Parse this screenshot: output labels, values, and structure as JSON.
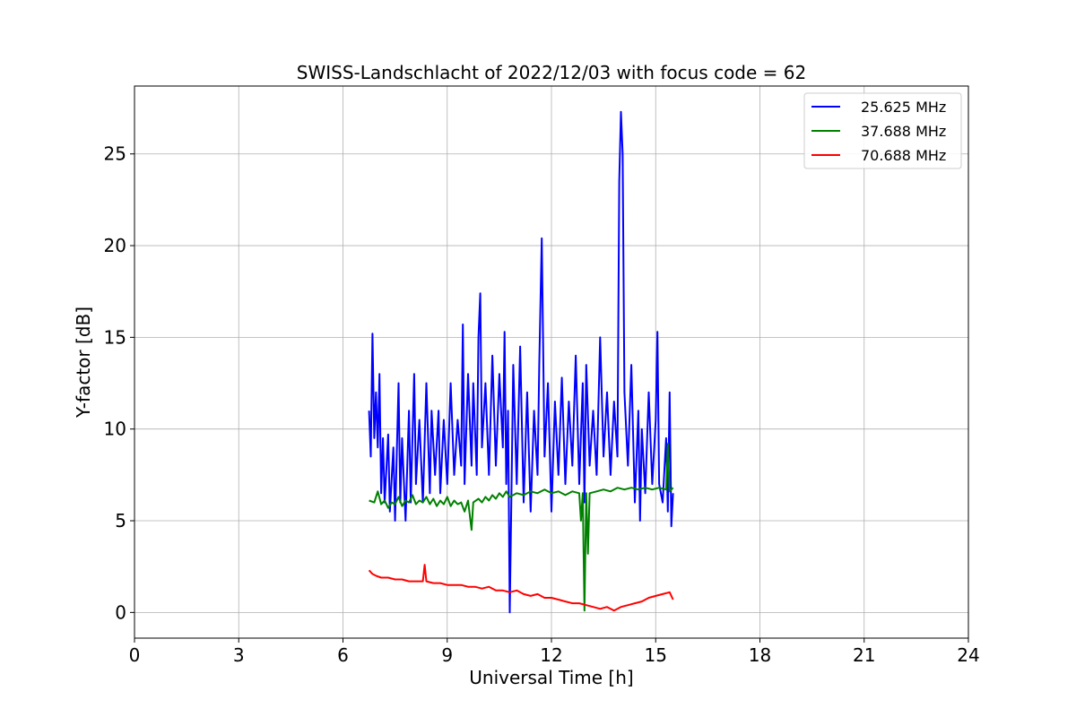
{
  "chart_data": {
    "type": "line",
    "title": "SWISS-Landschlacht of 2022/12/03 with focus code = 62",
    "xlabel": "Universal Time [h]",
    "ylabel": "Y-factor [dB]",
    "xlim": [
      0,
      24
    ],
    "ylim": [
      -1.4,
      28.7
    ],
    "xticks": [
      0,
      3,
      6,
      9,
      12,
      15,
      18,
      21,
      24
    ],
    "yticks": [
      0,
      5,
      10,
      15,
      20,
      25
    ],
    "grid": true,
    "legend": "top-right",
    "series": [
      {
        "name": "25.625 MHz",
        "color": "#0000ff",
        "points": [
          [
            6.75,
            11.0
          ],
          [
            6.8,
            8.5
          ],
          [
            6.85,
            15.2
          ],
          [
            6.9,
            9.5
          ],
          [
            6.95,
            12.0
          ],
          [
            7.0,
            9.0
          ],
          [
            7.05,
            13.0
          ],
          [
            7.1,
            6.5
          ],
          [
            7.15,
            9.5
          ],
          [
            7.2,
            6.0
          ],
          [
            7.3,
            9.7
          ],
          [
            7.35,
            5.5
          ],
          [
            7.45,
            9.0
          ],
          [
            7.5,
            5.0
          ],
          [
            7.6,
            12.5
          ],
          [
            7.65,
            6.0
          ],
          [
            7.7,
            9.5
          ],
          [
            7.8,
            5.0
          ],
          [
            7.9,
            11.0
          ],
          [
            7.95,
            6.0
          ],
          [
            8.05,
            13.0
          ],
          [
            8.1,
            7.0
          ],
          [
            8.2,
            10.5
          ],
          [
            8.3,
            6.0
          ],
          [
            8.4,
            12.5
          ],
          [
            8.5,
            6.5
          ],
          [
            8.55,
            11.0
          ],
          [
            8.65,
            7.5
          ],
          [
            8.75,
            11.0
          ],
          [
            8.8,
            6.5
          ],
          [
            8.9,
            10.5
          ],
          [
            9.0,
            7.0
          ],
          [
            9.1,
            12.5
          ],
          [
            9.2,
            7.5
          ],
          [
            9.3,
            10.5
          ],
          [
            9.4,
            8.0
          ],
          [
            9.45,
            15.7
          ],
          [
            9.5,
            7.0
          ],
          [
            9.6,
            13.0
          ],
          [
            9.7,
            8.0
          ],
          [
            9.75,
            12.5
          ],
          [
            9.85,
            7.5
          ],
          [
            9.9,
            15.0
          ],
          [
            9.95,
            17.4
          ],
          [
            10.0,
            9.0
          ],
          [
            10.1,
            12.5
          ],
          [
            10.2,
            7.5
          ],
          [
            10.3,
            14.0
          ],
          [
            10.4,
            8.0
          ],
          [
            10.5,
            13.0
          ],
          [
            10.6,
            9.0
          ],
          [
            10.65,
            15.3
          ],
          [
            10.7,
            7.0
          ],
          [
            10.75,
            11.0
          ],
          [
            10.8,
            0.0
          ],
          [
            10.85,
            6.5
          ],
          [
            10.9,
            13.5
          ],
          [
            11.0,
            7.0
          ],
          [
            11.1,
            14.5
          ],
          [
            11.2,
            6.0
          ],
          [
            11.3,
            12.0
          ],
          [
            11.4,
            5.5
          ],
          [
            11.5,
            11.0
          ],
          [
            11.6,
            7.5
          ],
          [
            11.65,
            13.5
          ],
          [
            11.72,
            20.4
          ],
          [
            11.8,
            8.5
          ],
          [
            11.9,
            12.5
          ],
          [
            12.0,
            5.5
          ],
          [
            12.1,
            11.5
          ],
          [
            12.2,
            7.5
          ],
          [
            12.3,
            12.8
          ],
          [
            12.4,
            7.0
          ],
          [
            12.5,
            11.5
          ],
          [
            12.6,
            8.0
          ],
          [
            12.7,
            14.0
          ],
          [
            12.8,
            7.0
          ],
          [
            12.9,
            12.5
          ],
          [
            12.95,
            6.0
          ],
          [
            13.0,
            13.5
          ],
          [
            13.1,
            8.0
          ],
          [
            13.2,
            11.0
          ],
          [
            13.3,
            7.5
          ],
          [
            13.4,
            15.0
          ],
          [
            13.5,
            8.5
          ],
          [
            13.6,
            12.0
          ],
          [
            13.7,
            7.5
          ],
          [
            13.8,
            11.5
          ],
          [
            13.9,
            8.5
          ],
          [
            13.95,
            23.5
          ],
          [
            14.0,
            27.3
          ],
          [
            14.05,
            25.0
          ],
          [
            14.1,
            12.0
          ],
          [
            14.2,
            8.0
          ],
          [
            14.3,
            13.5
          ],
          [
            14.4,
            6.0
          ],
          [
            14.5,
            11.0
          ],
          [
            14.55,
            5.0
          ],
          [
            14.6,
            10.0
          ],
          [
            14.7,
            6.5
          ],
          [
            14.8,
            12.0
          ],
          [
            14.9,
            7.0
          ],
          [
            15.0,
            10.5
          ],
          [
            15.05,
            15.3
          ],
          [
            15.1,
            7.0
          ],
          [
            15.2,
            6.0
          ],
          [
            15.3,
            9.5
          ],
          [
            15.35,
            5.5
          ],
          [
            15.4,
            12.0
          ],
          [
            15.45,
            4.7
          ],
          [
            15.5,
            6.5
          ]
        ]
      },
      {
        "name": "37.688 MHz",
        "color": "#008000",
        "points": [
          [
            6.75,
            6.1
          ],
          [
            6.9,
            6.0
          ],
          [
            7.0,
            6.6
          ],
          [
            7.1,
            5.9
          ],
          [
            7.2,
            6.1
          ],
          [
            7.3,
            5.7
          ],
          [
            7.4,
            6.0
          ],
          [
            7.5,
            5.9
          ],
          [
            7.6,
            6.3
          ],
          [
            7.7,
            5.8
          ],
          [
            7.8,
            6.1
          ],
          [
            7.9,
            6.0
          ],
          [
            8.0,
            6.4
          ],
          [
            8.1,
            5.9
          ],
          [
            8.2,
            6.1
          ],
          [
            8.3,
            6.0
          ],
          [
            8.4,
            6.3
          ],
          [
            8.5,
            5.9
          ],
          [
            8.6,
            6.2
          ],
          [
            8.7,
            5.8
          ],
          [
            8.8,
            6.1
          ],
          [
            8.9,
            5.9
          ],
          [
            9.0,
            6.3
          ],
          [
            9.1,
            5.8
          ],
          [
            9.2,
            6.1
          ],
          [
            9.3,
            5.9
          ],
          [
            9.4,
            6.0
          ],
          [
            9.5,
            5.5
          ],
          [
            9.6,
            6.1
          ],
          [
            9.7,
            4.5
          ],
          [
            9.75,
            6.0
          ],
          [
            9.9,
            6.2
          ],
          [
            10.0,
            6.0
          ],
          [
            10.1,
            6.3
          ],
          [
            10.2,
            6.1
          ],
          [
            10.3,
            6.4
          ],
          [
            10.4,
            6.2
          ],
          [
            10.5,
            6.5
          ],
          [
            10.6,
            6.3
          ],
          [
            10.7,
            6.6
          ],
          [
            10.8,
            6.3
          ],
          [
            10.9,
            6.4
          ],
          [
            11.0,
            6.5
          ],
          [
            11.2,
            6.4
          ],
          [
            11.4,
            6.6
          ],
          [
            11.6,
            6.5
          ],
          [
            11.8,
            6.7
          ],
          [
            12.0,
            6.5
          ],
          [
            12.2,
            6.6
          ],
          [
            12.4,
            6.4
          ],
          [
            12.6,
            6.6
          ],
          [
            12.8,
            6.5
          ],
          [
            12.85,
            5.0
          ],
          [
            12.9,
            6.5
          ],
          [
            12.95,
            0.1
          ],
          [
            13.0,
            6.5
          ],
          [
            13.05,
            3.2
          ],
          [
            13.1,
            6.5
          ],
          [
            13.3,
            6.6
          ],
          [
            13.5,
            6.7
          ],
          [
            13.7,
            6.6
          ],
          [
            13.9,
            6.8
          ],
          [
            14.1,
            6.7
          ],
          [
            14.3,
            6.8
          ],
          [
            14.5,
            6.7
          ],
          [
            14.7,
            6.8
          ],
          [
            14.9,
            6.7
          ],
          [
            15.1,
            6.8
          ],
          [
            15.3,
            6.7
          ],
          [
            15.35,
            9.2
          ],
          [
            15.4,
            6.6
          ],
          [
            15.5,
            6.8
          ]
        ]
      },
      {
        "name": "70.688 MHz",
        "color": "#ff0000",
        "points": [
          [
            6.75,
            2.3
          ],
          [
            6.85,
            2.1
          ],
          [
            6.95,
            2.0
          ],
          [
            7.1,
            1.9
          ],
          [
            7.3,
            1.9
          ],
          [
            7.5,
            1.8
          ],
          [
            7.7,
            1.8
          ],
          [
            7.9,
            1.7
          ],
          [
            8.1,
            1.7
          ],
          [
            8.3,
            1.7
          ],
          [
            8.35,
            2.6
          ],
          [
            8.4,
            1.7
          ],
          [
            8.6,
            1.6
          ],
          [
            8.8,
            1.6
          ],
          [
            9.0,
            1.5
          ],
          [
            9.2,
            1.5
          ],
          [
            9.4,
            1.5
          ],
          [
            9.6,
            1.4
          ],
          [
            9.8,
            1.4
          ],
          [
            10.0,
            1.3
          ],
          [
            10.2,
            1.4
          ],
          [
            10.4,
            1.2
          ],
          [
            10.6,
            1.2
          ],
          [
            10.8,
            1.1
          ],
          [
            11.0,
            1.2
          ],
          [
            11.2,
            1.0
          ],
          [
            11.4,
            0.9
          ],
          [
            11.6,
            1.0
          ],
          [
            11.8,
            0.8
          ],
          [
            12.0,
            0.8
          ],
          [
            12.2,
            0.7
          ],
          [
            12.4,
            0.6
          ],
          [
            12.6,
            0.5
          ],
          [
            12.8,
            0.5
          ],
          [
            13.0,
            0.4
          ],
          [
            13.2,
            0.3
          ],
          [
            13.4,
            0.2
          ],
          [
            13.6,
            0.3
          ],
          [
            13.8,
            0.1
          ],
          [
            14.0,
            0.3
          ],
          [
            14.2,
            0.4
          ],
          [
            14.4,
            0.5
          ],
          [
            14.6,
            0.6
          ],
          [
            14.8,
            0.8
          ],
          [
            15.0,
            0.9
          ],
          [
            15.2,
            1.0
          ],
          [
            15.4,
            1.1
          ],
          [
            15.5,
            0.7
          ]
        ]
      }
    ]
  }
}
